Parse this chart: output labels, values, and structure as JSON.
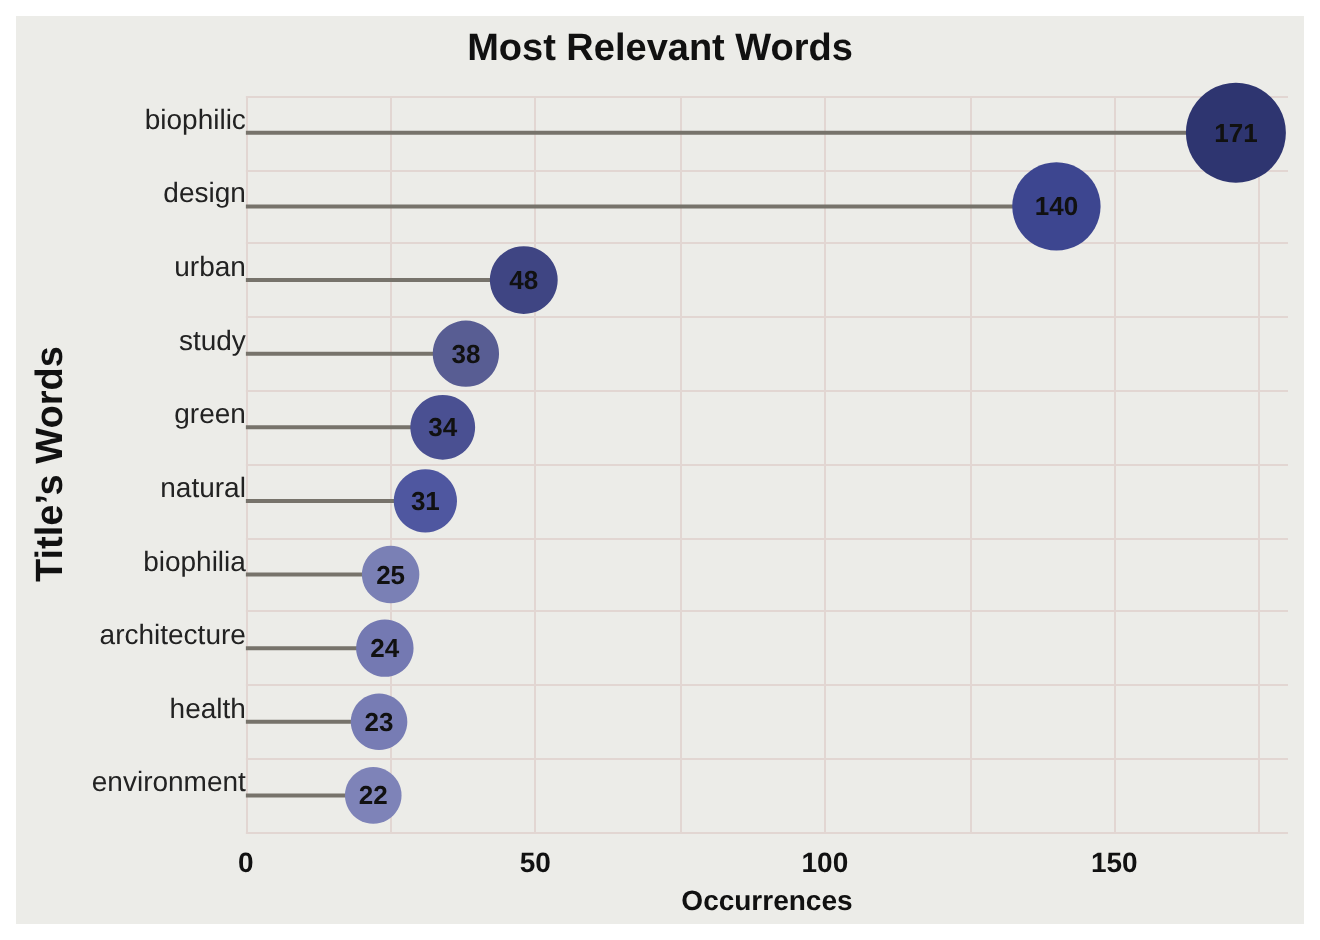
{
  "chart_data": {
    "type": "lollipop",
    "orientation": "horizontal",
    "title": "Most Relevant Words",
    "xlabel": "Occurrences",
    "ylabel": "Title’s Words",
    "categories": [
      "biophilic",
      "design",
      "urban",
      "study",
      "green",
      "natural",
      "biophilia",
      "architecture",
      "health",
      "environment"
    ],
    "values": [
      171,
      140,
      48,
      38,
      34,
      31,
      25,
      24,
      23,
      22
    ],
    "sizes": [
      1,
      0.78,
      0.46,
      0.44,
      0.42,
      0.4,
      0.33,
      0.33,
      0.32,
      0.32
    ],
    "color": "#77736b",
    "colors": [
      "#2e3570",
      "#3d4690",
      "#3f4583",
      "#585d93",
      "#4a5092",
      "#4f57a0",
      "#7a80b5",
      "#7479b2",
      "#777cb4",
      "#7e83b8"
    ],
    "xlim": [
      0,
      180
    ],
    "xticks": [
      0,
      {
        "value": 25,
        "label": null
      },
      50,
      {
        "value": 75,
        "label": null
      },
      100,
      {
        "value": 125,
        "label": null
      },
      150,
      {
        "value": 175,
        "label": null
      }
    ],
    "grid": true,
    "data_labels": true
  }
}
